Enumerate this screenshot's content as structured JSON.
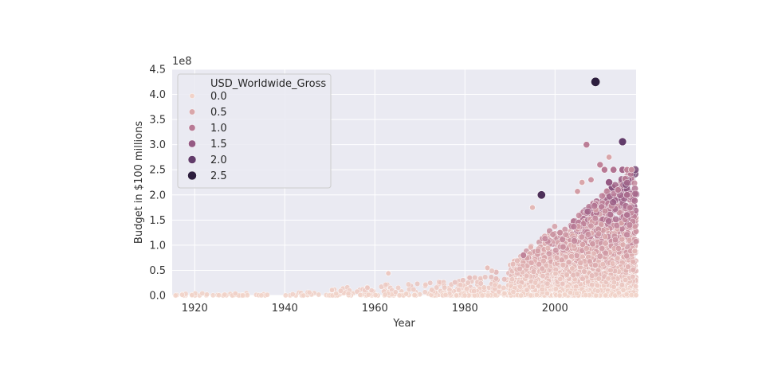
{
  "chart_data": {
    "type": "scatter",
    "title": "",
    "xlabel": "Year",
    "ylabel": "Budget in $100 millions",
    "y_offset_text": "1e8",
    "xlim": [
      1915,
      2018
    ],
    "ylim": [
      0,
      4.5
    ],
    "x_ticks": [
      1920,
      1940,
      1960,
      1980,
      2000
    ],
    "x_tick_labels": [
      "1920",
      "1940",
      "1960",
      "1980",
      "2000"
    ],
    "y_ticks": [
      0,
      0.5,
      1.0,
      1.5,
      2.0,
      2.5,
      3.0,
      3.5,
      4.0,
      4.5
    ],
    "y_tick_labels": [
      "0.0",
      "0.5",
      "1.0",
      "1.5",
      "2.0",
      "2.5",
      "3.0",
      "3.5",
      "4.0",
      "4.5"
    ],
    "grid": true,
    "background": "#eaeaf2",
    "legend": {
      "placement": "upper-left",
      "title": "USD_Worldwide_Gross",
      "entries": [
        {
          "label": "0.0",
          "value": 0.0,
          "color": "#f1d2c8"
        },
        {
          "label": "0.5",
          "value": 0.5,
          "color": "#d9a6aa"
        },
        {
          "label": "1.0",
          "value": 1.0,
          "color": "#b87a95"
        },
        {
          "label": "1.5",
          "value": 1.5,
          "color": "#955a84"
        },
        {
          "label": "2.0",
          "value": 2.0,
          "color": "#623c6b"
        },
        {
          "label": "2.5",
          "value": 2.5,
          "color": "#2d1e3e"
        }
      ]
    },
    "hue_variable": "USD_Worldwide_Gross",
    "hue_unit": "1e9",
    "notable_points": [
      {
        "x": 2009,
        "y": 4.25,
        "hue": 2.8
      },
      {
        "x": 1997,
        "y": 2.0,
        "hue": 2.2
      },
      {
        "x": 2015,
        "y": 3.06,
        "hue": 2.0
      },
      {
        "x": 2007,
        "y": 3.0,
        "hue": 0.96
      },
      {
        "x": 2012,
        "y": 2.75,
        "hue": 0.5
      },
      {
        "x": 2011,
        "y": 2.5,
        "hue": 1.0
      },
      {
        "x": 2013,
        "y": 2.5,
        "hue": 1.1
      },
      {
        "x": 2015,
        "y": 2.5,
        "hue": 1.3
      },
      {
        "x": 2016,
        "y": 2.5,
        "hue": 0.9
      },
      {
        "x": 2017,
        "y": 2.5,
        "hue": 0.8
      },
      {
        "x": 2010,
        "y": 2.6,
        "hue": 0.9
      },
      {
        "x": 2012,
        "y": 2.25,
        "hue": 1.5
      },
      {
        "x": 2014,
        "y": 2.1,
        "hue": 1.0
      },
      {
        "x": 2016,
        "y": 2.0,
        "hue": 1.2
      },
      {
        "x": 2016,
        "y": 1.6,
        "hue": 1.1
      },
      {
        "x": 2008,
        "y": 2.3,
        "hue": 0.7
      },
      {
        "x": 2005,
        "y": 2.07,
        "hue": 0.6
      },
      {
        "x": 2006,
        "y": 2.25,
        "hue": 0.5
      },
      {
        "x": 1995,
        "y": 1.75,
        "hue": 0.3
      },
      {
        "x": 1993,
        "y": 0.8,
        "hue": 0.9
      },
      {
        "x": 1985,
        "y": 0.55,
        "hue": 0.2
      },
      {
        "x": 1963,
        "y": 0.44,
        "hue": 0.1
      }
    ],
    "density": [
      {
        "from": 1915,
        "to": 1950,
        "count": 60,
        "ymax": 0.08
      },
      {
        "from": 1950,
        "to": 1975,
        "count": 110,
        "ymax": 0.3
      },
      {
        "from": 1975,
        "to": 1990,
        "count": 200,
        "ymax": 0.6
      },
      {
        "from": 1990,
        "to": 2000,
        "count": 750,
        "ymax": 1.4
      },
      {
        "from": 2000,
        "to": 2018,
        "count": 2600,
        "ymax": 2.6
      }
    ]
  }
}
